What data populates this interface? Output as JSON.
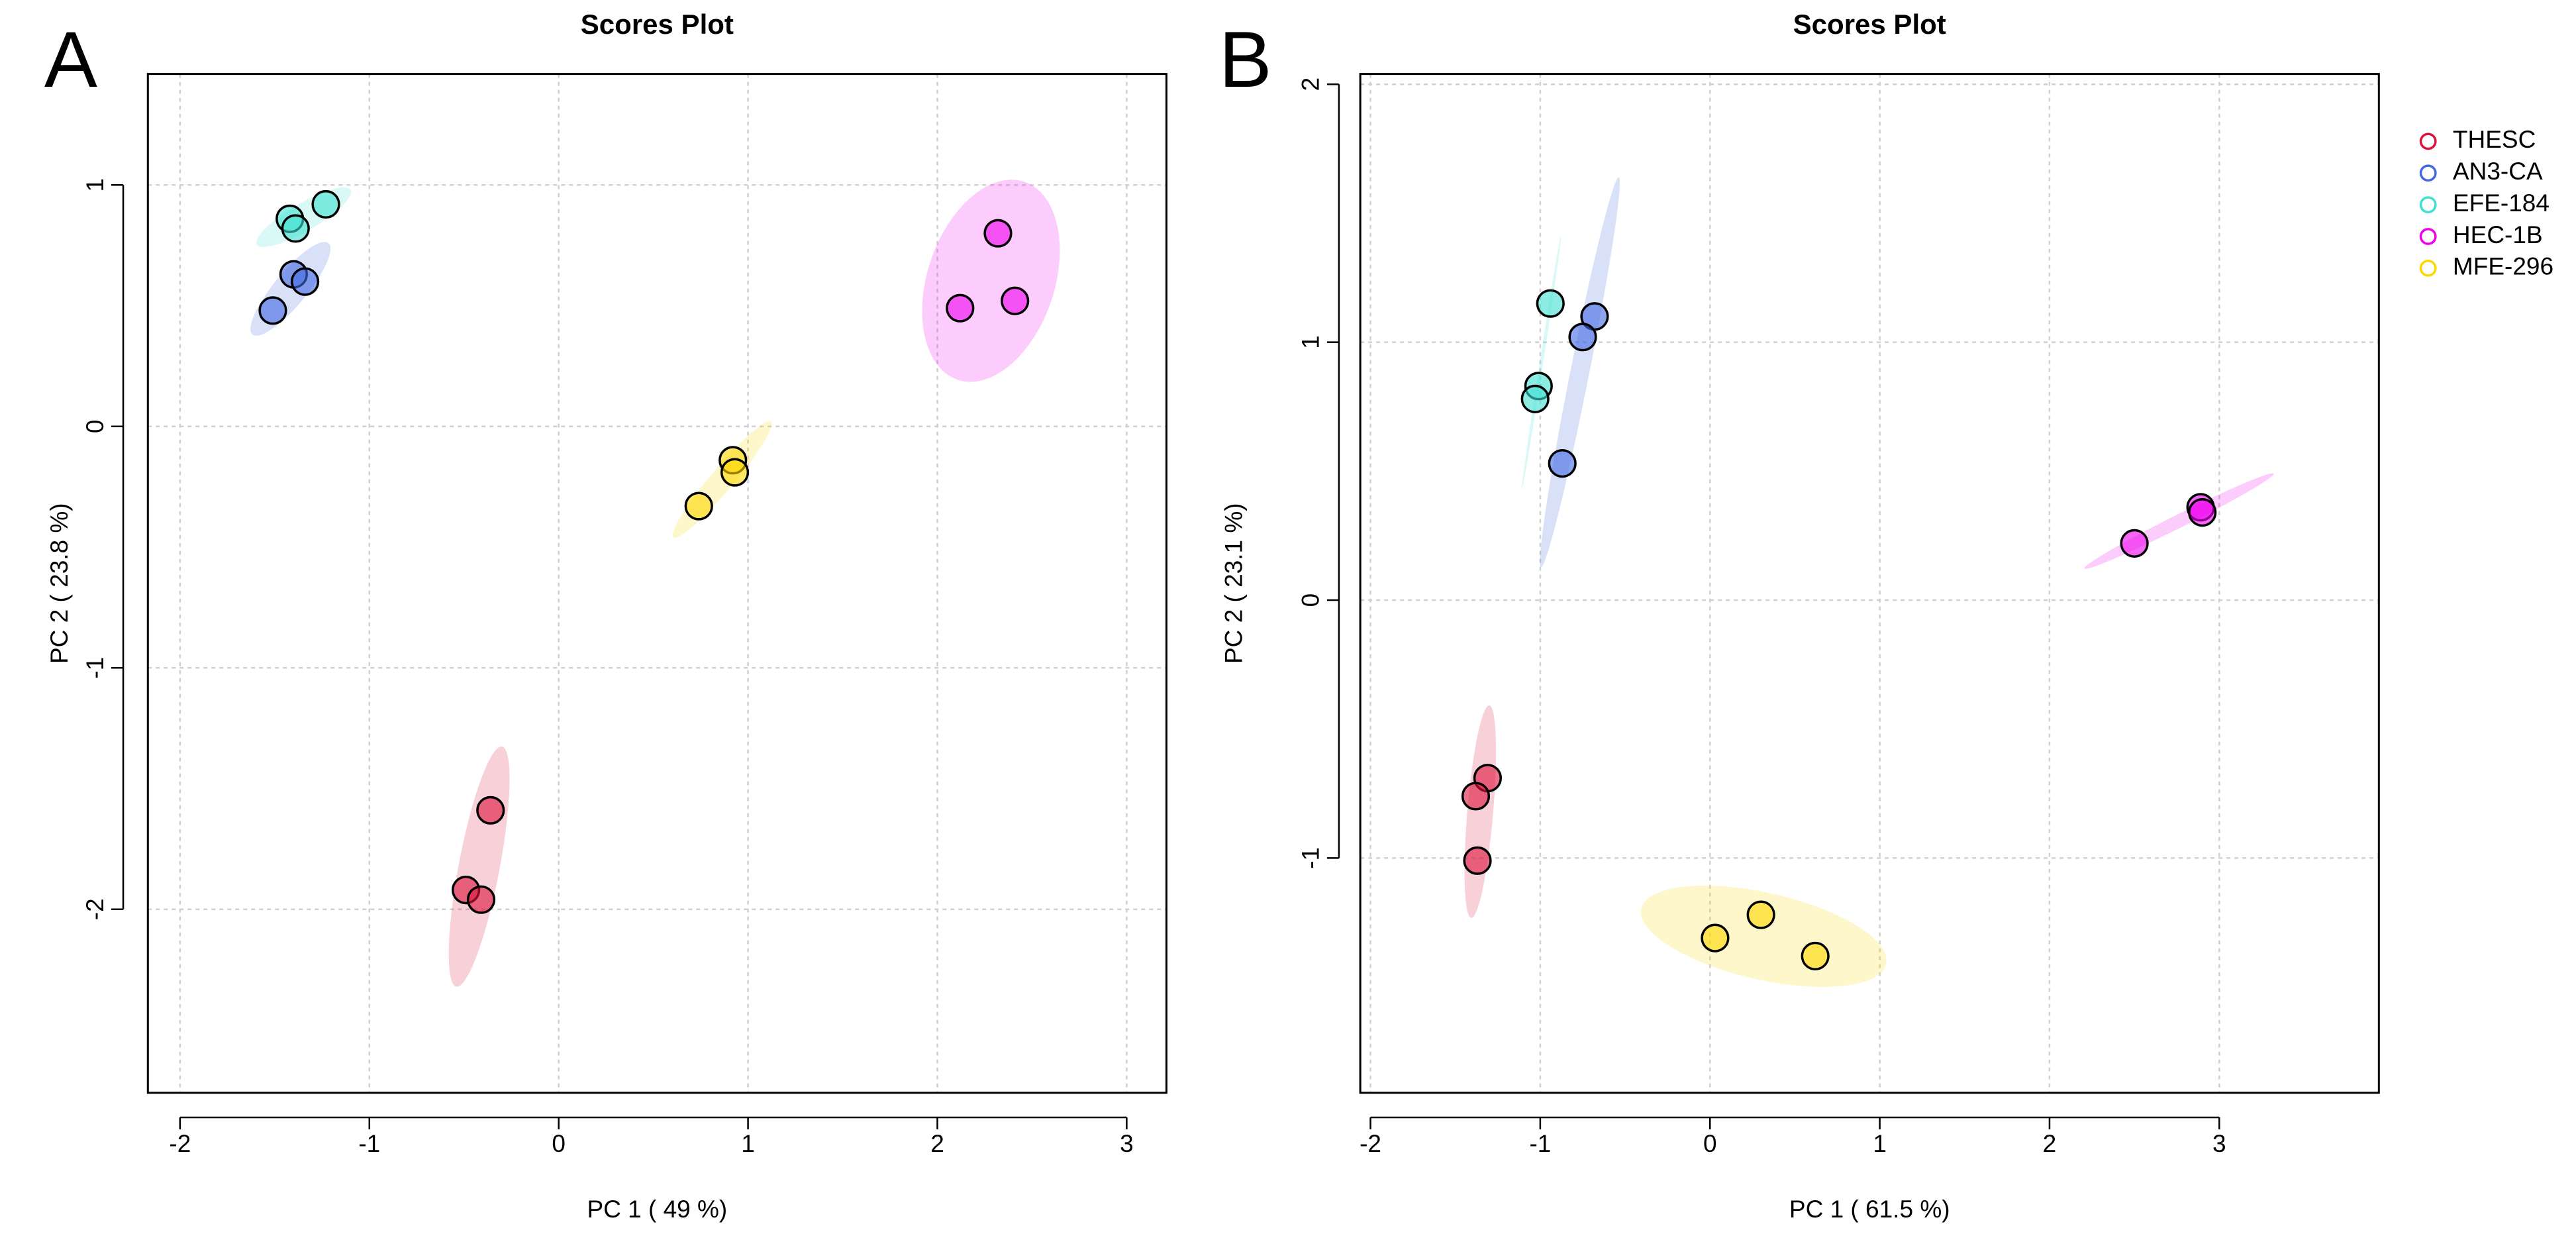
{
  "chart_data": [
    {
      "type": "scatter",
      "label": "A",
      "title": "Scores Plot",
      "x_label": "PC 1 ( 49 %)",
      "y_label": "PC 2 ( 23.8 %)",
      "xlim": [
        -2.17,
        3.21
      ],
      "ylim": [
        -2.76,
        1.46
      ],
      "xticks": [
        -2,
        -1,
        0,
        1,
        2,
        3
      ],
      "yticks": [
        -2,
        -1,
        0,
        1
      ],
      "grid": true,
      "legend": false,
      "series": [
        {
          "name": "THESC",
          "color": "#DC143C",
          "x": [
            -0.36,
            -0.49,
            -0.41
          ],
          "values": [
            -1.59,
            -1.92,
            -1.96
          ]
        },
        {
          "name": "AN3-CA",
          "color": "#4169E1",
          "x": [
            -1.51,
            -1.4,
            -1.34
          ],
          "values": [
            0.48,
            0.63,
            0.6
          ]
        },
        {
          "name": "EFE-184",
          "color": "#40E0D0",
          "x": [
            -1.42,
            -1.39,
            -1.23
          ],
          "values": [
            0.86,
            0.82,
            0.92
          ]
        },
        {
          "name": "HEC-1B",
          "color": "#EE00EE",
          "x": [
            2.32,
            2.12,
            2.41
          ],
          "values": [
            0.8,
            0.49,
            0.52
          ]
        },
        {
          "name": "MFE-296",
          "color": "#FFD700",
          "x": [
            0.92,
            0.93,
            0.74
          ],
          "values": [
            -0.14,
            -0.19,
            -0.33
          ]
        }
      ]
    },
    {
      "type": "scatter",
      "label": "B",
      "title": "Scores Plot",
      "x_label": "PC 1 ( 61.5 %)",
      "y_label": "PC 2 ( 23.1 %)",
      "xlim": [
        -2.06,
        3.94
      ],
      "ylim": [
        -1.91,
        2.04
      ],
      "xticks": [
        -2,
        -1,
        0,
        1,
        2,
        3
      ],
      "yticks": [
        -1,
        0,
        1,
        2
      ],
      "grid": true,
      "legend": "right",
      "series": [
        {
          "name": "THESC",
          "color": "#DC143C",
          "x": [
            -1.31,
            -1.38,
            -1.37
          ],
          "values": [
            -0.69,
            -0.76,
            -1.01
          ]
        },
        {
          "name": "AN3-CA",
          "color": "#4169E1",
          "x": [
            -0.68,
            -0.75,
            -0.87
          ],
          "values": [
            1.1,
            1.02,
            0.53
          ]
        },
        {
          "name": "EFE-184",
          "color": "#40E0D0",
          "x": [
            -0.94,
            -1.01,
            -1.03
          ],
          "values": [
            1.15,
            0.83,
            0.78
          ]
        },
        {
          "name": "HEC-1B",
          "color": "#EE00EE",
          "x": [
            2.5,
            2.89,
            2.9
          ],
          "values": [
            0.22,
            0.36,
            0.34
          ]
        },
        {
          "name": "MFE-296",
          "color": "#FFD700",
          "x": [
            0.03,
            0.3,
            0.62
          ],
          "values": [
            -1.31,
            -1.22,
            -1.38
          ]
        }
      ]
    }
  ]
}
